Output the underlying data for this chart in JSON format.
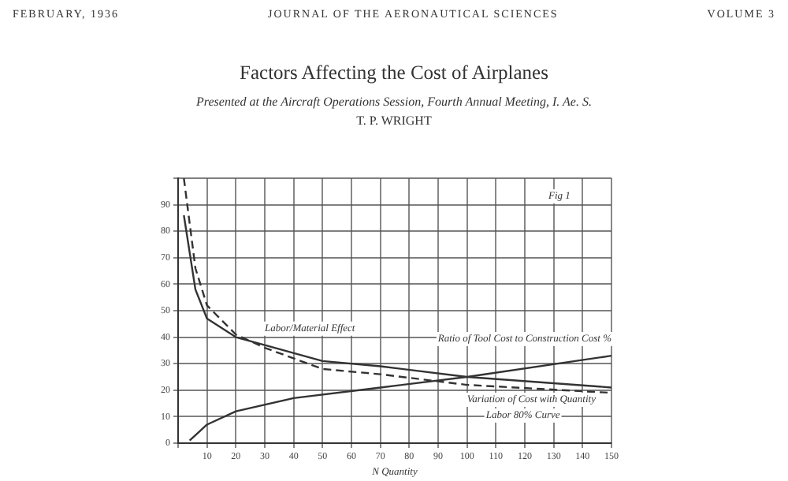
{
  "chart_data": {
    "type": "line",
    "title": "Factors Affecting the Cost of Airplanes",
    "subtitle": "Presented at the Aircraft Operations Session, Fourth Annual Meeting, I. Ae. S.",
    "xlabel": "N Quantity",
    "x": [
      2,
      6,
      10,
      20,
      30,
      50,
      70,
      100,
      150
    ],
    "series": [
      {
        "name": "Labor/Material Effect",
        "color": "#333333",
        "line_style": "solid",
        "values": [
          86,
          58,
          47,
          40,
          37,
          31,
          29,
          25,
          21
        ]
      },
      {
        "name": "Variation of Cost with Quantity",
        "color": "#333333",
        "line_style": "dashed",
        "values": [
          100,
          66,
          52,
          41,
          36,
          28,
          26,
          22,
          19
        ]
      },
      {
        "name": "Ratio of Tool Cost to Construction Cost %",
        "color": "#333333",
        "line_style": "solid",
        "x": [
          4,
          10,
          20,
          40,
          70,
          100,
          150
        ],
        "values": [
          1,
          7,
          12,
          17,
          21,
          25,
          33
        ]
      }
    ],
    "xlim": [
      0,
      150
    ],
    "ylim": [
      0,
      100
    ],
    "xticks": [
      {
        "value": 0,
        "label": null
      },
      10,
      20,
      30,
      40,
      50,
      60,
      70,
      80,
      90,
      100,
      110,
      120,
      130,
      140,
      150
    ],
    "yticks": [
      0,
      10,
      20,
      30,
      40,
      50,
      60,
      70,
      80,
      90,
      {
        "value": 100,
        "label": null
      }
    ],
    "grid": true,
    "legend": false,
    "marker": "none",
    "annotations": [
      "FEBRUARY, 1936",
      "JOURNAL OF THE AERONAUTICAL SCIENCES",
      "VOLUME 3",
      "T. P. WRIGHT",
      "Fig 1",
      "Labor 80% Curve"
    ]
  }
}
